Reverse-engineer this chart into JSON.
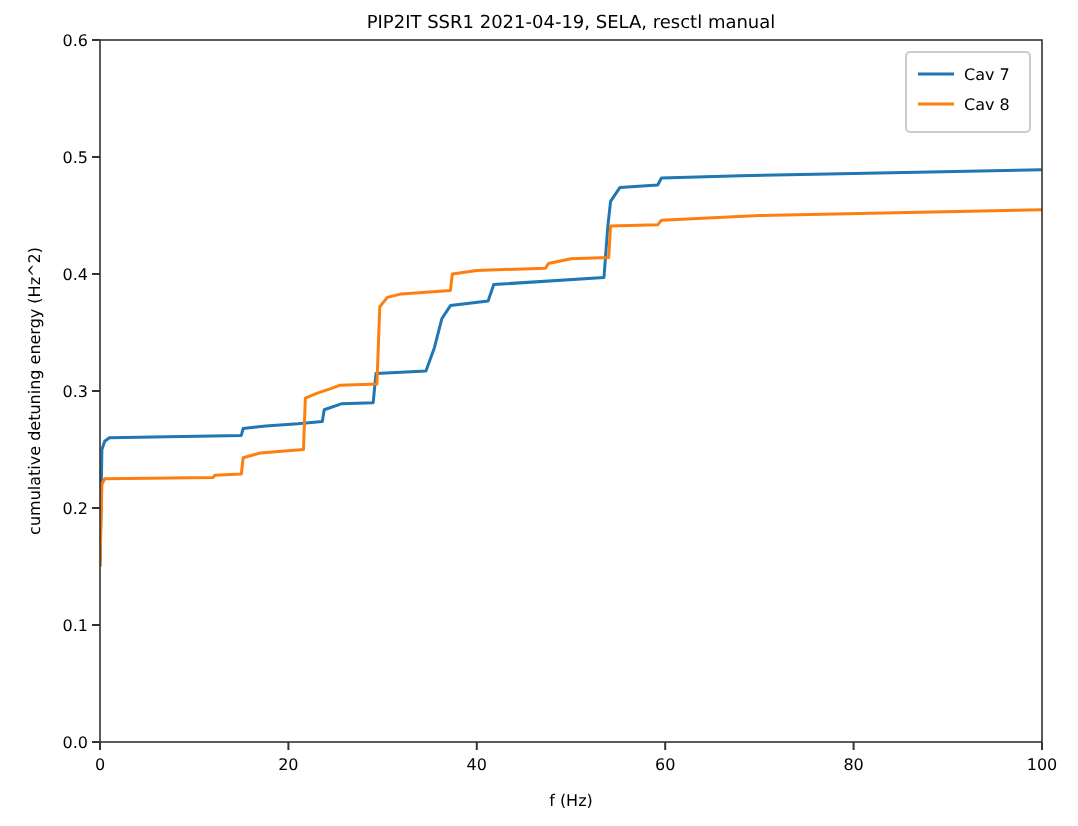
{
  "chart_data": {
    "type": "line",
    "title": "PIP2IT SSR1 2021-04-19, SELA, resctl manual",
    "xlabel": "f (Hz)",
    "ylabel": "cumulative detuning energy (Hz^2)",
    "xlim": [
      0,
      100
    ],
    "xticks": [
      0,
      20,
      40,
      60,
      80,
      100
    ],
    "ylim": [
      0,
      0.6
    ],
    "yticks": [
      {
        "value": 0,
        "label": "0.0"
      },
      {
        "value": 0.1,
        "label": "0.1"
      },
      {
        "value": 0.2,
        "label": "0.2"
      },
      {
        "value": 0.3,
        "label": "0.3"
      },
      {
        "value": 0.4,
        "label": "0.4"
      },
      {
        "value": 0.5,
        "label": "0.5"
      },
      {
        "value": 0.6,
        "label": "0.6"
      }
    ],
    "grid": false,
    "legend": "top right",
    "marker": "none",
    "line_style": "solid",
    "series": [
      {
        "name": "Cav 7",
        "color": "#1f77b4",
        "x": [
          0,
          0.2,
          0.5,
          1,
          15,
          15.2,
          17.6,
          21,
          23.6,
          23.8,
          25.6,
          29,
          29.3,
          34.6,
          35.5,
          36.3,
          37.2,
          41.2,
          41.8,
          53.5,
          53.9,
          54.2,
          55.2,
          59.2,
          59.6,
          68,
          80,
          100
        ],
        "values": [
          0.15,
          0.25,
          0.257,
          0.26,
          0.262,
          0.268,
          0.27,
          0.272,
          0.274,
          0.284,
          0.289,
          0.29,
          0.315,
          0.317,
          0.337,
          0.362,
          0.373,
          0.377,
          0.391,
          0.397,
          0.44,
          0.462,
          0.474,
          0.476,
          0.482,
          0.484,
          0.486,
          0.489
        ]
      },
      {
        "name": "Cav 8",
        "color": "#ff7f0e",
        "x": [
          0,
          0.2,
          0.5,
          12,
          12.2,
          15,
          15.2,
          17,
          21.6,
          21.8,
          23,
          24.5,
          25.5,
          29.4,
          29.7,
          30.5,
          32,
          37.2,
          37.4,
          40,
          47.3,
          47.6,
          50,
          54,
          54.2,
          59.2,
          59.6,
          70,
          100
        ],
        "values": [
          0.15,
          0.22,
          0.225,
          0.226,
          0.228,
          0.229,
          0.243,
          0.247,
          0.25,
          0.294,
          0.298,
          0.302,
          0.305,
          0.306,
          0.372,
          0.38,
          0.383,
          0.386,
          0.4,
          0.403,
          0.405,
          0.409,
          0.413,
          0.414,
          0.441,
          0.442,
          0.446,
          0.45,
          0.455
        ]
      }
    ]
  }
}
